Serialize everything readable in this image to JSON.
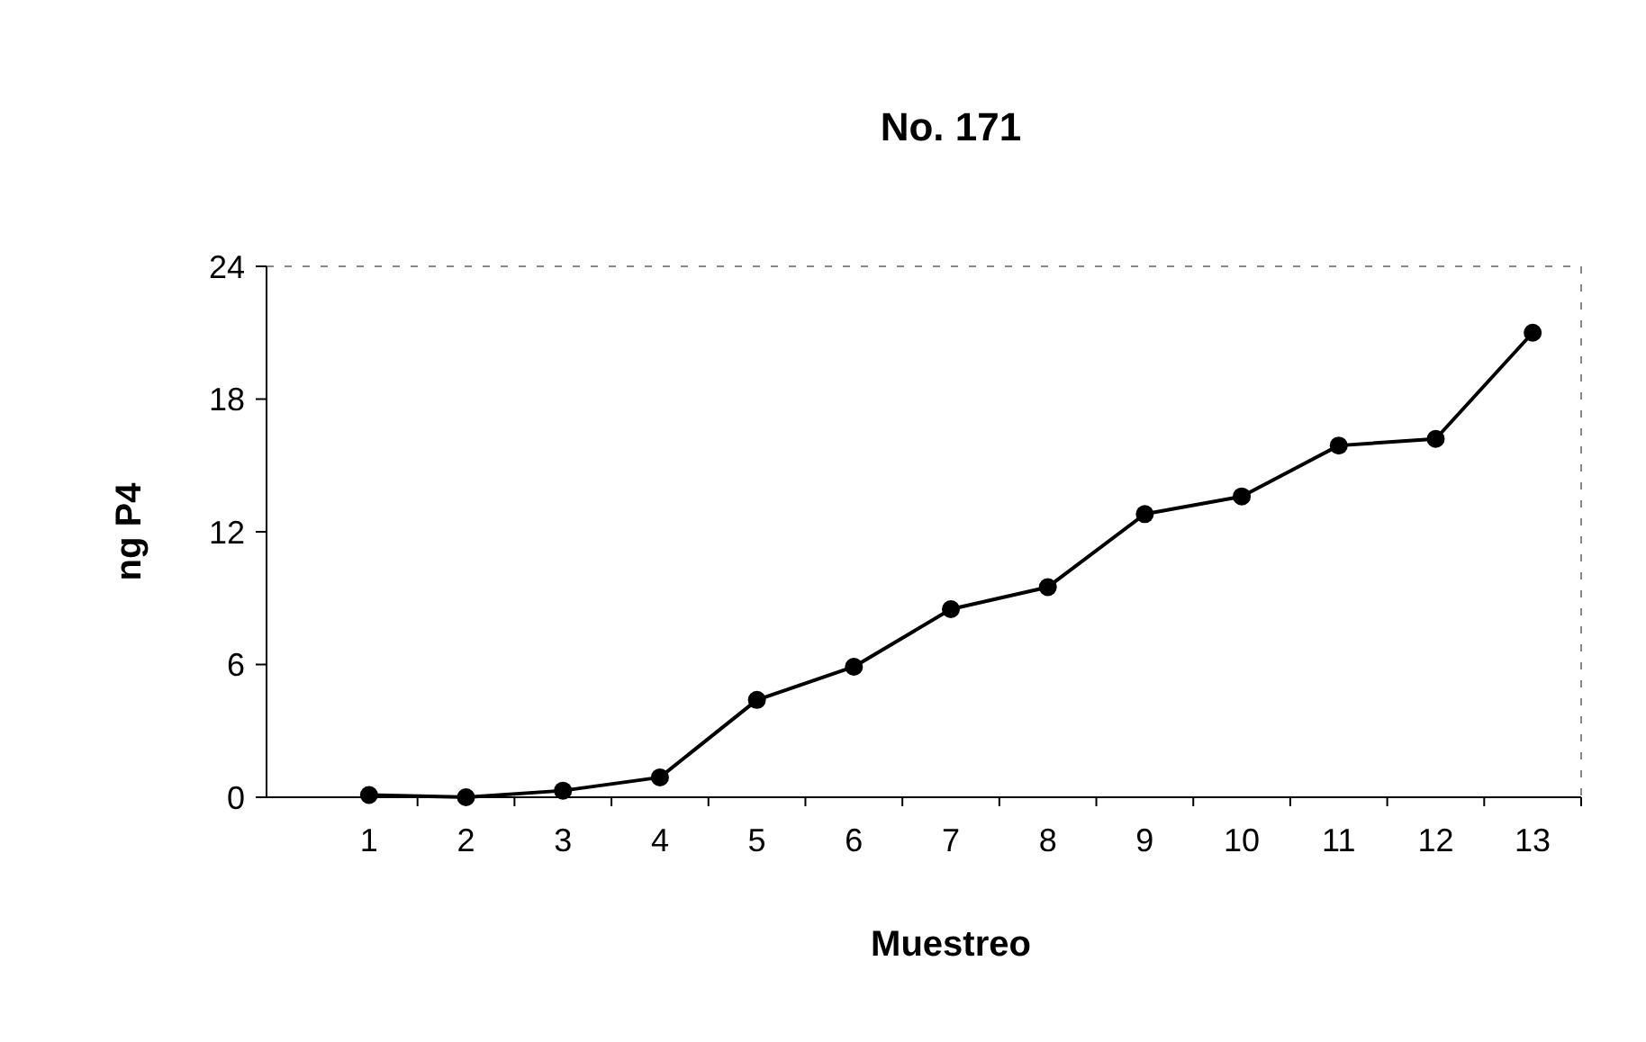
{
  "chart_data": {
    "type": "line",
    "title": "No. 171",
    "xlabel": "Muestreo",
    "ylabel": "ng P4",
    "categories": [
      "1",
      "2",
      "3",
      "4",
      "5",
      "6",
      "7",
      "8",
      "9",
      "10",
      "11",
      "12",
      "13"
    ],
    "series": [
      {
        "color": "#000000",
        "values": [
          0.1,
          0,
          0.3,
          0.9,
          4.4,
          5.9,
          8.5,
          9.5,
          12.8,
          13.6,
          15.9,
          16.2,
          21
        ]
      }
    ],
    "ylim": [
      0,
      24
    ],
    "yticks": [
      0,
      6,
      12,
      18,
      24
    ],
    "marker": "circle",
    "grid": false
  }
}
